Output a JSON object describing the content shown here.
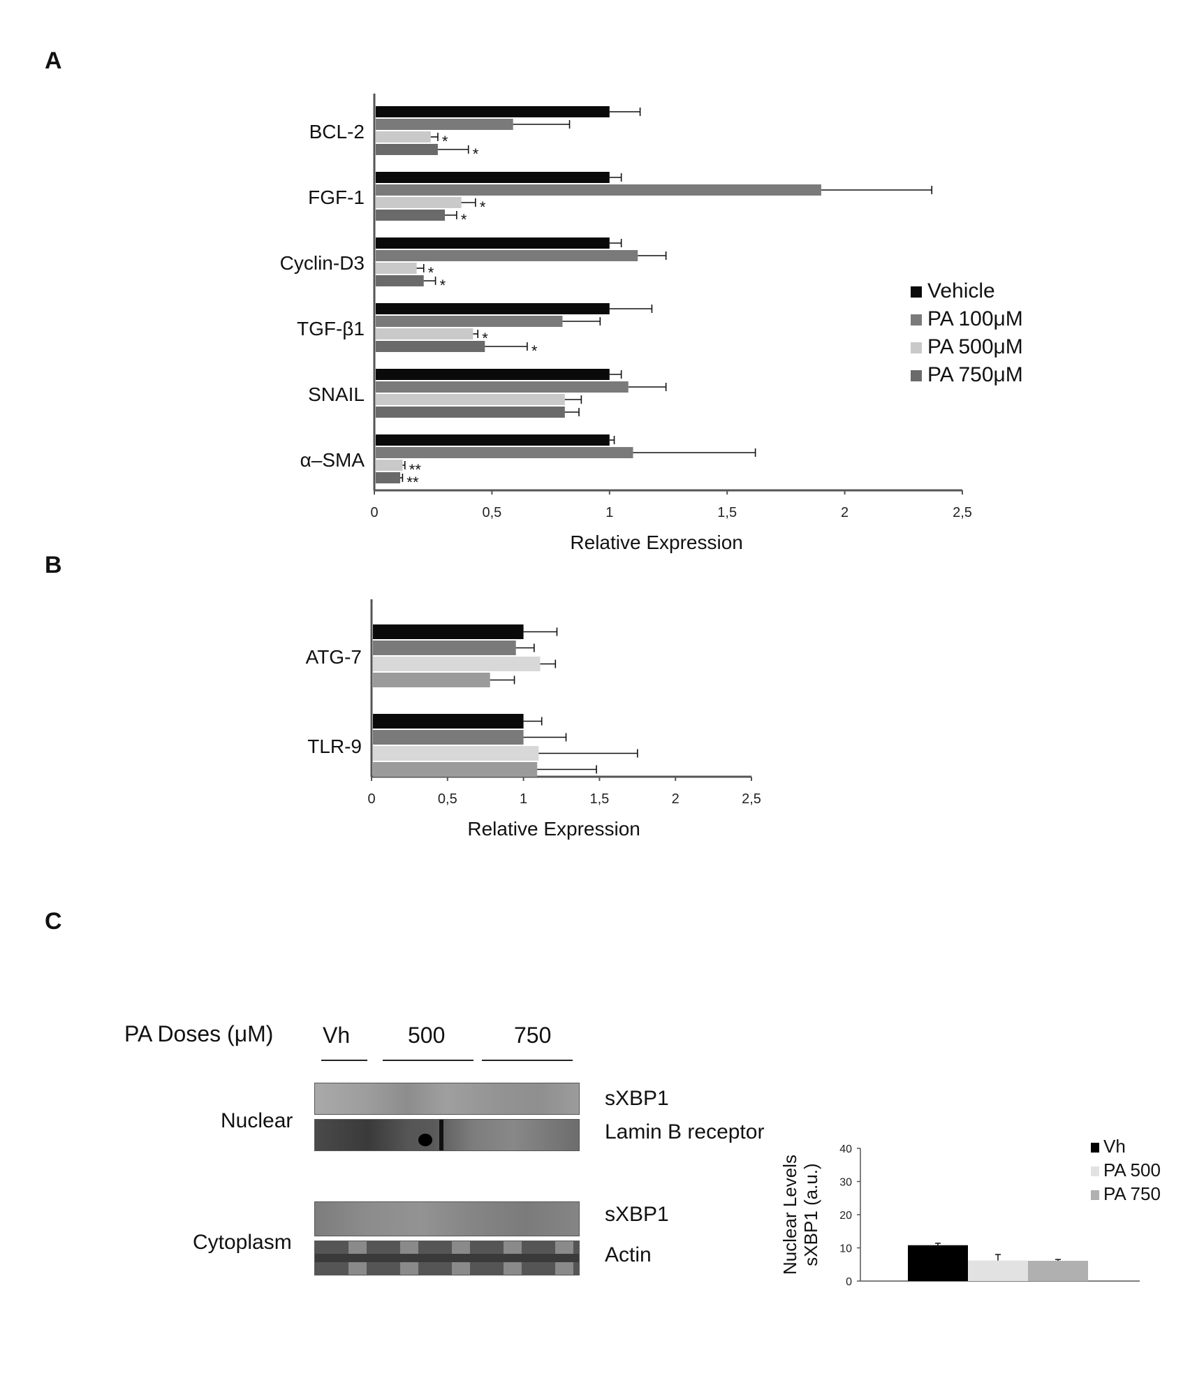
{
  "panels": {
    "a": "A",
    "b": "B",
    "c": "C"
  },
  "colors": {
    "vehicle": "#0a0a0a",
    "pa100": "#7a7a7a",
    "pa500": "#c9c9c9",
    "pa750": "#6a6a6a",
    "panelB_pa500": "#d8d8d8",
    "panelB_pa750": "#9b9b9b",
    "panelC_vh": "#000000",
    "panelC_pa500": "#e2e2e2",
    "panelC_pa750": "#b0b0b0",
    "axis": "#555555",
    "error": "#111111"
  },
  "chart_data": [
    {
      "id": "panelA",
      "type": "bar",
      "orientation": "horizontal",
      "categories": [
        "BCL-2",
        "FGF-1",
        "Cyclin-D3",
        "TGF-β1",
        "SNAIL",
        "α–SMA"
      ],
      "series": [
        {
          "name": "Vehicle",
          "values": [
            1,
            1,
            1,
            1,
            1,
            1
          ],
          "errors": [
            0.13,
            0.05,
            0.05,
            0.18,
            0.05,
            0.02
          ],
          "color_key": "vehicle"
        },
        {
          "name": "PA 100μM",
          "values": [
            0.59,
            1.9,
            1.12,
            0.8,
            1.08,
            1.1
          ],
          "errors": [
            0.24,
            0.47,
            0.12,
            0.16,
            0.16,
            0.52
          ],
          "color_key": "pa100"
        },
        {
          "name": "PA 500μM",
          "values": [
            0.24,
            0.37,
            0.18,
            0.42,
            0.81,
            0.12
          ],
          "errors": [
            0.03,
            0.06,
            0.03,
            0.02,
            0.07,
            0.01
          ],
          "color_key": "pa500"
        },
        {
          "name": "PA 750μM",
          "values": [
            0.27,
            0.3,
            0.21,
            0.47,
            0.81,
            0.11
          ],
          "errors": [
            0.13,
            0.05,
            0.05,
            0.18,
            0.06,
            0.01
          ],
          "color_key": "pa750"
        }
      ],
      "significance": [
        [
          "",
          "",
          "",
          "",
          "",
          ""
        ],
        [
          "",
          "",
          "",
          "",
          "",
          ""
        ],
        [
          "*",
          "*",
          "*",
          "*",
          "",
          "**"
        ],
        [
          "*",
          "*",
          "*",
          "*",
          "",
          "**"
        ]
      ],
      "xlabel": "Relative Expression",
      "xlim": [
        0,
        2.5
      ],
      "xticks": [
        "0",
        "0,5",
        "1",
        "1,5",
        "2",
        "2,5"
      ],
      "legend_position": "right",
      "legend": [
        "Vehicle",
        "PA 100μM",
        "PA 500μM",
        "PA 750μM"
      ]
    },
    {
      "id": "panelB",
      "type": "bar",
      "orientation": "horizontal",
      "categories": [
        "ATG-7",
        "TLR-9"
      ],
      "series": [
        {
          "name": "Vehicle",
          "values": [
            1,
            1
          ],
          "errors": [
            0.22,
            0.12
          ],
          "color_key": "vehicle"
        },
        {
          "name": "PA 100μM",
          "values": [
            0.95,
            1
          ],
          "errors": [
            0.12,
            0.28
          ],
          "color_key": "pa100"
        },
        {
          "name": "PA 500μM",
          "values": [
            1.11,
            1.1
          ],
          "errors": [
            0.1,
            0.65
          ],
          "color_key": "panelB_pa500"
        },
        {
          "name": "PA 750μM",
          "values": [
            0.78,
            1.09
          ],
          "errors": [
            0.16,
            0.39
          ],
          "color_key": "panelB_pa750"
        }
      ],
      "xlabel": "Relative Expression",
      "xlim": [
        0,
        2.5
      ],
      "xticks": [
        "0",
        "0,5",
        "1",
        "1,5",
        "2",
        "2,5"
      ]
    },
    {
      "id": "panelC",
      "type": "bar",
      "categories": [
        "Vh",
        "PA 500",
        "PA 750"
      ],
      "values": [
        10.8,
        6.2,
        6.1
      ],
      "errors": [
        0.6,
        1.8,
        0.4
      ],
      "ylabel_line1": "Nuclear Levels",
      "ylabel_line2": "sXBP1 (a.u.)",
      "ylim": [
        0,
        40
      ],
      "yticks": [
        "0",
        "10",
        "20",
        "30",
        "40"
      ],
      "legend": [
        "Vh",
        "PA 500",
        "PA 750"
      ],
      "legend_position": "top-right"
    }
  ],
  "western_blot": {
    "doses_label": "PA Doses (μM)",
    "dose_groups": [
      "Vh",
      "500",
      "750"
    ],
    "nuclear_label": "Nuclear",
    "cytoplasm_label": "Cytoplasm",
    "band_labels": [
      "sXBP1",
      "Lamin B receptor",
      "sXBP1",
      "Actin"
    ]
  }
}
